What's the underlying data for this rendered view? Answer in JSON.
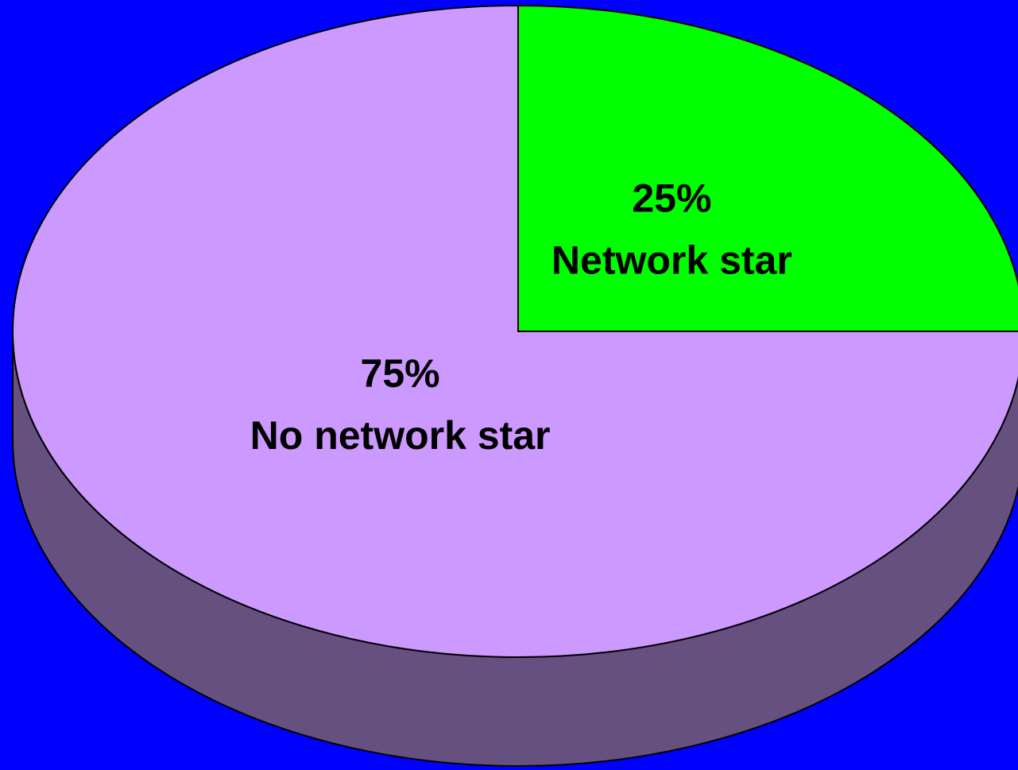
{
  "chart_data": {
    "type": "pie",
    "categories": [
      "Network star",
      "No network star"
    ],
    "values": [
      25,
      75
    ],
    "value_labels": [
      "25%",
      "75%"
    ],
    "colors": [
      "#00ff00",
      "#cc99ff"
    ],
    "side_color": "#665080",
    "background": "#0000ff"
  }
}
